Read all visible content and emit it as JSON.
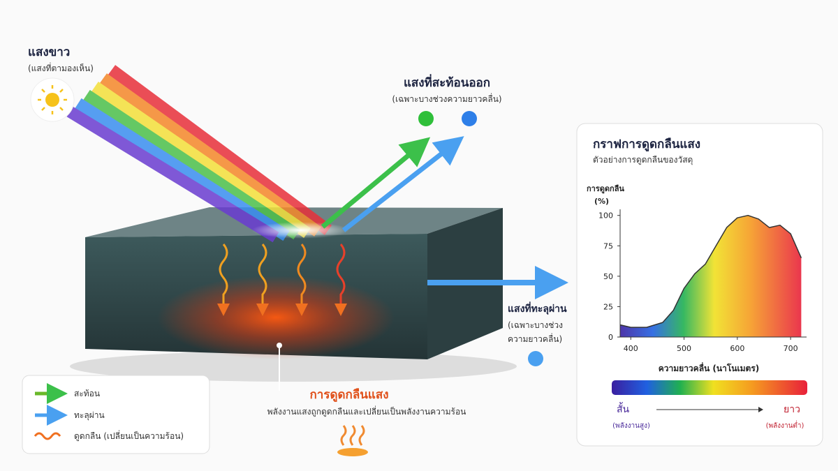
{
  "white_light": {
    "title": "แสงขาว",
    "subtitle": "(แสงที่ตามองเห็น)"
  },
  "reflected": {
    "title": "แสงที่สะท้อนออก",
    "subtitle": "(เฉพาะบางช่วงความยาวคลื่น)"
  },
  "transmitted": {
    "title": "แสงที่ทะลุผ่าน",
    "subtitle_lines": [
      "(เฉพาะบางช่วง",
      "ความยาวคลื่น)"
    ]
  },
  "absorption": {
    "title": "การดูดกลืนแสง",
    "description": "พลังงานแสงถูกดูดกลืนและเปลี่ยนเป็นพลังงานความร้อน"
  },
  "legend": {
    "items": [
      "สะท้อน",
      "ทะลุผ่าน",
      "ดูดกลืน (เปลี่ยนเป็นความร้อน)"
    ]
  },
  "chart_data": {
    "type": "area",
    "title": "กราฟการดูดกลืนแสง",
    "subtitle": "ตัวอย่างการดูดกลืนของวัสดุ",
    "y_label_lines": [
      "การดูดกลืน",
      "(%)"
    ],
    "x_label": "ความยาวคลื่น (นาโนเมตร)",
    "x": [
      380,
      400,
      430,
      460,
      480,
      500,
      520,
      540,
      560,
      580,
      600,
      620,
      640,
      660,
      680,
      700,
      720
    ],
    "values": [
      10,
      8,
      8,
      12,
      22,
      40,
      52,
      60,
      75,
      90,
      98,
      100,
      97,
      90,
      92,
      85,
      65
    ],
    "xlim": [
      380,
      730
    ],
    "ylim": [
      0,
      105
    ],
    "xticks": [
      400,
      500,
      600,
      700
    ],
    "yticks": [
      0,
      25,
      50,
      75,
      100
    ],
    "short_label": "สั้น",
    "short_sub": "(พลังงานสูง)",
    "long_label": "ยาว",
    "long_sub": "(พลังงานต่ำ)"
  }
}
